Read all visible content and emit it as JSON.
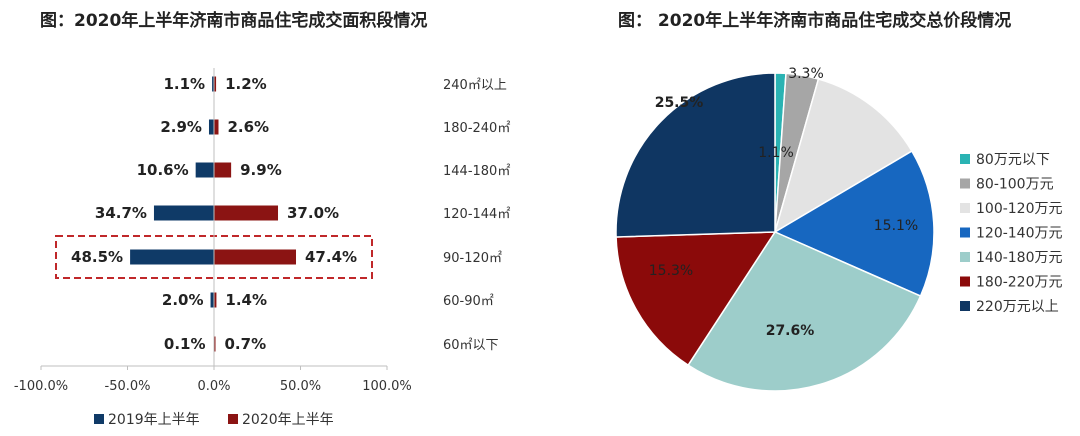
{
  "chart_data": [
    {
      "type": "bar",
      "orientation": "horizontal-diverging",
      "title": "图：2020年上半年济南市商品住宅成交面积段情况",
      "categories": [
        "240㎡以上",
        "180-240㎡",
        "144-180㎡",
        "120-144㎡",
        "90-120㎡",
        "60-90㎡",
        "60㎡以下"
      ],
      "series": [
        {
          "name": "2019年上半年",
          "values": [
            1.1,
            2.9,
            10.6,
            34.7,
            48.5,
            2.0,
            0.1
          ],
          "value_labels": [
            "1.1%",
            "2.9%",
            "10.6%",
            "34.7%",
            "48.5%",
            "2.0%",
            "0.1%"
          ],
          "color": "#0f3a67"
        },
        {
          "name": "2020年上半年",
          "values": [
            1.2,
            2.6,
            9.9,
            37.0,
            47.4,
            1.4,
            0.7
          ],
          "value_labels": [
            "1.2%",
            "2.6%",
            "9.9%",
            "37.0%",
            "47.4%",
            "1.4%",
            "0.7%"
          ],
          "color": "#8b1413"
        }
      ],
      "xlim": [
        -100,
        100
      ],
      "xticks": [
        "-100.0%",
        "-50.0%",
        "0.0%",
        "50.0%",
        "100.0%"
      ],
      "highlighted_category": "90-120㎡",
      "highlight_color": "#c0282a",
      "legend": "bottom"
    },
    {
      "type": "pie",
      "title": "图： 2020年上半年济南市商品住宅成交总价段情况",
      "slices": [
        {
          "label": "80万元以下",
          "value": 1.1,
          "value_label": "1.1%",
          "color": "#2ab3b3"
        },
        {
          "label": "80-100万元",
          "value": 3.3,
          "value_label": "3.3%",
          "color": "#a6a6a6"
        },
        {
          "label": "100-120万元",
          "value": 12.1,
          "value_label": "",
          "color": "#e3e3e3"
        },
        {
          "label": "120-140万元",
          "value": 15.1,
          "value_label": "15.1%",
          "color": "#1767c0"
        },
        {
          "label": "140-180万元",
          "value": 27.6,
          "value_label": "27.6%",
          "color": "#9dcdca"
        },
        {
          "label": "180-220万元",
          "value": 15.3,
          "value_label": "15.3%",
          "color": "#8b0a0a"
        },
        {
          "label": "220万元以上",
          "value": 25.5,
          "value_label": "25.5%",
          "color": "#0f3662"
        }
      ],
      "legend": "right"
    }
  ]
}
